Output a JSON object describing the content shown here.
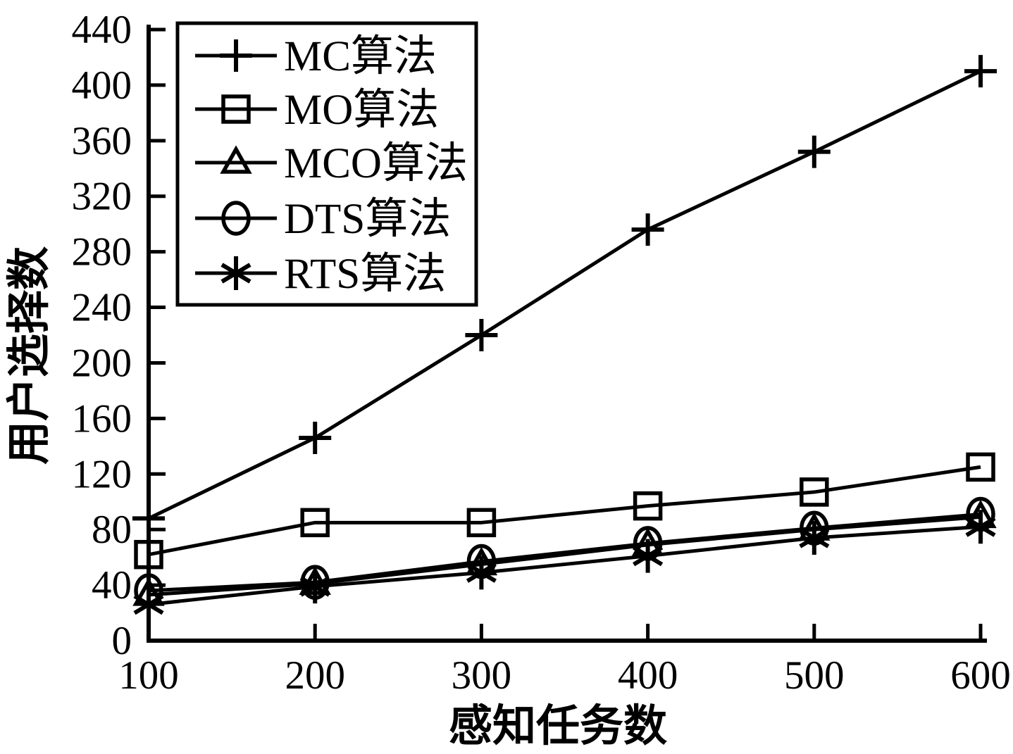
{
  "chart_data": {
    "type": "line",
    "title": "",
    "xlabel": "感知任务数",
    "ylabel": "用户选择数",
    "x": [
      100,
      200,
      300,
      400,
      500,
      600
    ],
    "xticks": [
      100,
      200,
      300,
      400,
      500,
      600
    ],
    "yticks": [
      0,
      40,
      80,
      120,
      160,
      200,
      240,
      280,
      320,
      360,
      400,
      440
    ],
    "xlim": [
      100,
      600
    ],
    "ylim": [
      0,
      440
    ],
    "grid": false,
    "legend_position": "top-left",
    "line_color": "#000000",
    "background_color": "#ffffff",
    "series": [
      {
        "name": "MC算法",
        "marker": "plus",
        "values": [
          88,
          146,
          220,
          296,
          352,
          410
        ]
      },
      {
        "name": "MO算法",
        "marker": "square",
        "values": [
          62,
          85,
          85,
          97,
          107,
          125
        ]
      },
      {
        "name": "MCO算法",
        "marker": "triangle",
        "values": [
          33,
          41,
          55,
          69,
          80,
          89
        ]
      },
      {
        "name": "DTS算法",
        "marker": "circle",
        "values": [
          36,
          42,
          57,
          70,
          81,
          91
        ]
      },
      {
        "name": "RTS算法",
        "marker": "asterisk",
        "values": [
          26,
          39,
          49,
          61,
          74,
          82
        ]
      }
    ]
  }
}
